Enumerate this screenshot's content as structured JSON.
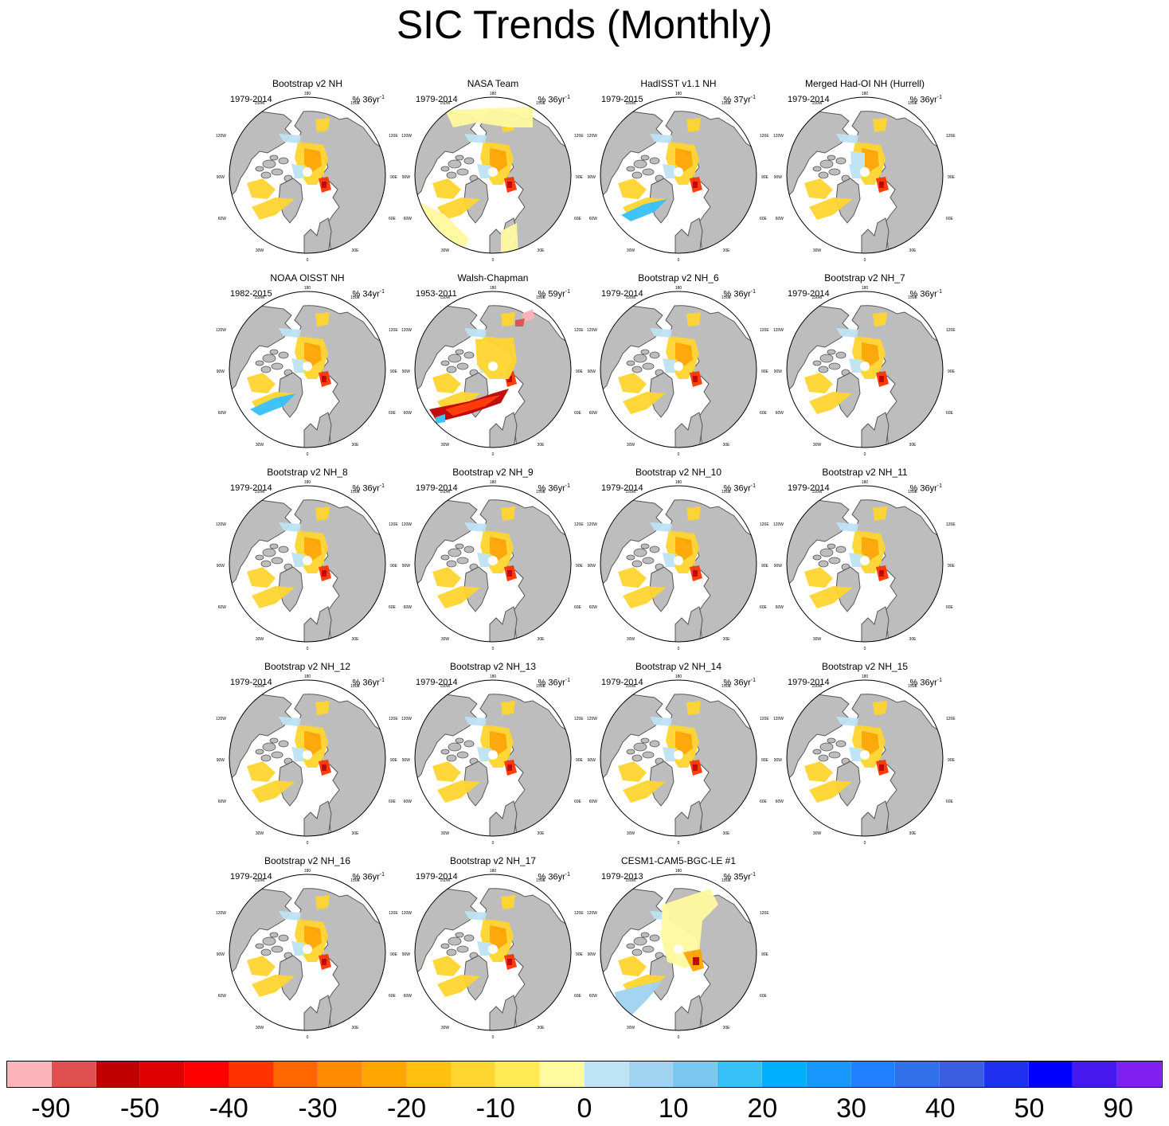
{
  "title": "SIC Trends (Monthly)",
  "map_labels": {
    "top": "180",
    "bottom": "0",
    "left_mid": "90W",
    "right_mid": "90E",
    "upper_left": "120W",
    "upper_right": "120E",
    "lower_left": "60W",
    "lower_right": "60E",
    "top_left": "150W",
    "top_right": "150E",
    "bottom_left": "30W",
    "bottom_right": "30E"
  },
  "panels": [
    {
      "title": "Bootstrap v2 NH",
      "years": "1979-2014",
      "units": "% 36yr",
      "units_exp": "-1",
      "variant": "obs"
    },
    {
      "title": "NASA Team",
      "years": "1979-2014",
      "units": "% 36yr",
      "units_exp": "-1",
      "variant": "nasa"
    },
    {
      "title": "HadISST v1.1 NH",
      "years": "1979-2015",
      "units": "% 37yr",
      "units_exp": "-1",
      "variant": "had"
    },
    {
      "title": "Merged Had-OI NH (Hurrell)",
      "years": "1979-2014",
      "units": "% 36yr",
      "units_exp": "-1",
      "variant": "merged"
    },
    {
      "title": "NOAA OISST NH",
      "years": "1982-2015",
      "units": "% 34yr",
      "units_exp": "-1",
      "variant": "had"
    },
    {
      "title": "Walsh-Chapman",
      "years": "1953-2011",
      "units": "% 59yr",
      "units_exp": "-1",
      "variant": "walsh"
    },
    {
      "title": "Bootstrap v2 NH_6",
      "years": "1979-2014",
      "units": "% 36yr",
      "units_exp": "-1",
      "variant": "obs"
    },
    {
      "title": "Bootstrap v2 NH_7",
      "years": "1979-2014",
      "units": "% 36yr",
      "units_exp": "-1",
      "variant": "obs"
    },
    {
      "title": "Bootstrap v2 NH_8",
      "years": "1979-2014",
      "units": "% 36yr",
      "units_exp": "-1",
      "variant": "obs"
    },
    {
      "title": "Bootstrap v2 NH_9",
      "years": "1979-2014",
      "units": "% 36yr",
      "units_exp": "-1",
      "variant": "obs"
    },
    {
      "title": "Bootstrap v2 NH_10",
      "years": "1979-2014",
      "units": "% 36yr",
      "units_exp": "-1",
      "variant": "obs"
    },
    {
      "title": "Bootstrap v2 NH_11",
      "years": "1979-2014",
      "units": "% 36yr",
      "units_exp": "-1",
      "variant": "obs"
    },
    {
      "title": "Bootstrap v2 NH_12",
      "years": "1979-2014",
      "units": "% 36yr",
      "units_exp": "-1",
      "variant": "obs"
    },
    {
      "title": "Bootstrap v2 NH_13",
      "years": "1979-2014",
      "units": "% 36yr",
      "units_exp": "-1",
      "variant": "obs"
    },
    {
      "title": "Bootstrap v2 NH_14",
      "years": "1979-2014",
      "units": "% 36yr",
      "units_exp": "-1",
      "variant": "obs"
    },
    {
      "title": "Bootstrap v2 NH_15",
      "years": "1979-2014",
      "units": "% 36yr",
      "units_exp": "-1",
      "variant": "obs"
    },
    {
      "title": "Bootstrap v2 NH_16",
      "years": "1979-2014",
      "units": "% 36yr",
      "units_exp": "-1",
      "variant": "obs"
    },
    {
      "title": "Bootstrap v2 NH_17",
      "years": "1979-2014",
      "units": "% 36yr",
      "units_exp": "-1",
      "variant": "obs"
    },
    {
      "title": "CESM1-CAM5-BGC-LE #1",
      "years": "1979-2013",
      "units": "% 35yr",
      "units_exp": "-1",
      "variant": "cesm"
    }
  ],
  "colorbar": {
    "colors": [
      "#fbb4b9",
      "#e05050",
      "#c00000",
      "#dc0000",
      "#ff0000",
      "#ff3300",
      "#ff6600",
      "#ff8c00",
      "#ffa500",
      "#ffc010",
      "#ffd530",
      "#ffeb55",
      "#fff9a0",
      "#bde3f5",
      "#a0d3f0",
      "#7ac8f0",
      "#38c0f8",
      "#00b0ff",
      "#1898ff",
      "#2080ff",
      "#3070e8",
      "#3a5ee0",
      "#2030f0",
      "#0000ff",
      "#4818f0",
      "#8020f0"
    ],
    "labels": [
      "-90",
      "-50",
      "-40",
      "-30",
      "-20",
      "-10",
      "0",
      "10",
      "20",
      "30",
      "40",
      "50",
      "90"
    ]
  },
  "colors": {
    "land": "#bdbdbd",
    "coast": "#555555"
  }
}
